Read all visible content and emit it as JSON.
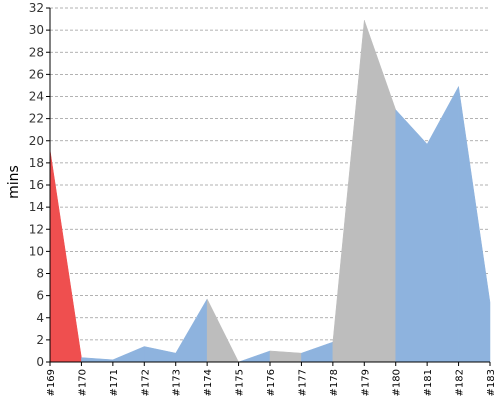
{
  "chart_data": {
    "type": "area",
    "title": "",
    "xlabel": "",
    "ylabel": "mins",
    "categories": [
      "#169",
      "#170",
      "#171",
      "#172",
      "#173",
      "#174",
      "#175",
      "#176",
      "#177",
      "#178",
      "#179",
      "#180",
      "#181",
      "#182",
      "#183"
    ],
    "values": [
      19.2,
      0.4,
      0.2,
      1.4,
      0.8,
      5.7,
      0.0,
      1.0,
      0.8,
      1.8,
      30.9,
      22.8,
      19.7,
      24.9,
      5.4
    ],
    "point_status": [
      "success",
      "failed",
      "success",
      "success",
      "success",
      "success",
      "aborted",
      "success",
      "aborted",
      "success",
      "aborted",
      "aborted",
      "success",
      "success",
      "success"
    ],
    "status_colors": {
      "success": "#8eb3de",
      "failed": "#ef4f4f",
      "aborted": "#bdbdbd"
    },
    "ylim": [
      0,
      32
    ],
    "yticks": [
      0,
      2,
      4,
      6,
      8,
      10,
      12,
      14,
      16,
      18,
      20,
      22,
      24,
      26,
      28,
      30,
      32
    ],
    "grid": true,
    "legend": "none"
  }
}
